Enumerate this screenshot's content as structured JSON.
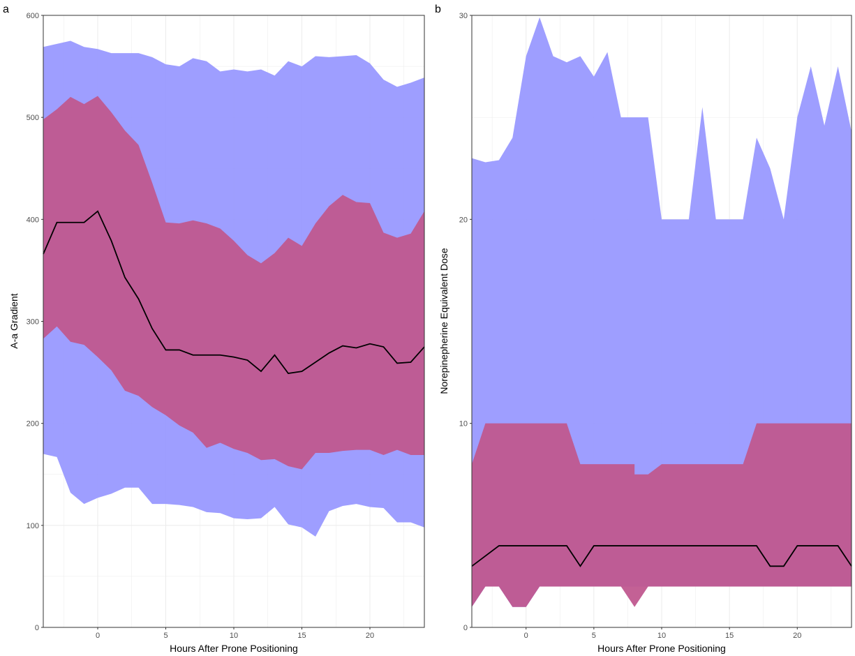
{
  "colors": {
    "outer_band": "#9999ff",
    "inner_band": "#c0588f",
    "median_line": "#000000",
    "grid": "#ebebeb",
    "border": "#333333"
  },
  "chart_data": [
    {
      "panel_tag": "a",
      "type": "area",
      "xlabel": "Hours After Prone Positioning",
      "ylabel": "A-a Gradient",
      "xlim": [
        -4,
        24
      ],
      "ylim": [
        0,
        600
      ],
      "x_ticks": [
        0,
        5,
        10,
        15,
        20
      ],
      "y_ticks": [
        0,
        100,
        200,
        300,
        400,
        500,
        600
      ],
      "x": [
        -4,
        -3,
        -2,
        -1,
        0,
        1,
        2,
        3,
        4,
        5,
        6,
        7,
        8,
        9,
        10,
        11,
        12,
        13,
        14,
        15,
        16,
        17,
        18,
        19,
        20,
        21,
        22,
        23,
        24
      ],
      "series": [
        {
          "role": "outer_band",
          "upper": [
            569,
            572,
            575,
            569,
            567,
            563,
            563,
            563,
            559,
            552,
            550,
            558,
            555,
            545,
            547,
            545,
            547,
            541,
            555,
            550,
            560,
            559,
            560,
            561,
            553,
            537,
            530,
            534,
            539
          ],
          "lower": [
            170,
            167,
            132,
            121,
            127,
            131,
            137,
            137,
            121,
            121,
            120,
            118,
            113,
            112,
            107,
            106,
            107,
            118,
            101,
            98,
            89,
            114,
            119,
            121,
            118,
            117,
            103,
            103,
            98
          ]
        },
        {
          "role": "inner_band",
          "upper": [
            498,
            508,
            520,
            513,
            521,
            505,
            487,
            473,
            436,
            397,
            396,
            399,
            396,
            391,
            379,
            365,
            357,
            367,
            382,
            374,
            396,
            413,
            424,
            417,
            416,
            387,
            382,
            386,
            408
          ],
          "lower": [
            283,
            295,
            280,
            277,
            265,
            252,
            232,
            227,
            216,
            208,
            198,
            191,
            176,
            181,
            175,
            171,
            164,
            165,
            158,
            155,
            171,
            171,
            173,
            174,
            174,
            169,
            174,
            169,
            169
          ]
        },
        {
          "role": "median",
          "values": [
            366,
            397,
            397,
            397,
            408,
            379,
            343,
            322,
            293,
            272,
            272,
            267,
            267,
            267,
            265,
            262,
            251,
            267,
            249,
            251,
            260,
            269,
            276,
            274,
            278,
            275,
            259,
            260,
            275
          ]
        }
      ]
    },
    {
      "panel_tag": "b",
      "type": "area",
      "xlabel": "Hours After Prone Positioning",
      "ylabel": "Norepinepherine Equivalent Dose",
      "xlim": [
        -4,
        24
      ],
      "ylim": [
        0,
        30
      ],
      "x_ticks": [
        0,
        5,
        10,
        15,
        20
      ],
      "y_ticks": [
        0,
        10,
        20,
        30
      ],
      "outer_band_points": {
        "upper": [
          [
            -4,
            23
          ],
          [
            -3,
            22.8
          ],
          [
            -2,
            22.9
          ],
          [
            -1,
            24
          ],
          [
            0,
            28
          ],
          [
            1,
            29.9
          ],
          [
            2,
            28
          ],
          [
            3,
            27.7
          ],
          [
            4,
            28
          ],
          [
            5,
            27
          ],
          [
            6,
            28.2
          ],
          [
            7,
            25
          ],
          [
            9,
            25
          ],
          [
            10,
            20
          ],
          [
            12,
            20
          ],
          [
            13,
            25.5
          ],
          [
            14,
            20
          ],
          [
            16,
            20
          ],
          [
            17,
            24
          ],
          [
            18,
            22.5
          ],
          [
            19,
            20
          ],
          [
            20,
            25
          ],
          [
            21,
            27.5
          ],
          [
            22,
            24.6
          ],
          [
            23,
            27.5
          ],
          [
            24,
            24.3
          ]
        ],
        "lower": [
          [
            -4,
            1
          ],
          [
            -3,
            2
          ],
          [
            -2,
            2
          ],
          [
            -1,
            1
          ],
          [
            0,
            1
          ],
          [
            1,
            2
          ],
          [
            24,
            2
          ]
        ]
      },
      "inner_band_points": {
        "upper": [
          [
            -4,
            8
          ],
          [
            -3,
            10
          ],
          [
            3,
            10
          ],
          [
            4,
            8
          ],
          [
            8,
            8
          ],
          [
            8,
            7.5
          ],
          [
            9,
            7.5
          ],
          [
            10,
            8
          ],
          [
            16,
            8
          ],
          [
            17,
            10
          ],
          [
            24,
            10
          ]
        ],
        "lower": [
          [
            -4,
            1
          ],
          [
            -3,
            2
          ],
          [
            -2,
            2
          ],
          [
            -1,
            1
          ],
          [
            0,
            1
          ],
          [
            1,
            2
          ],
          [
            7,
            2
          ],
          [
            8,
            1
          ],
          [
            9,
            2
          ],
          [
            24,
            2
          ]
        ]
      },
      "median_points": [
        [
          -4,
          3
        ],
        [
          -2,
          4
        ],
        [
          3,
          4
        ],
        [
          4,
          3
        ],
        [
          5,
          4
        ],
        [
          17,
          4
        ],
        [
          18,
          3
        ],
        [
          19,
          3
        ],
        [
          20,
          4
        ],
        [
          23,
          4
        ],
        [
          24,
          3
        ]
      ]
    }
  ]
}
